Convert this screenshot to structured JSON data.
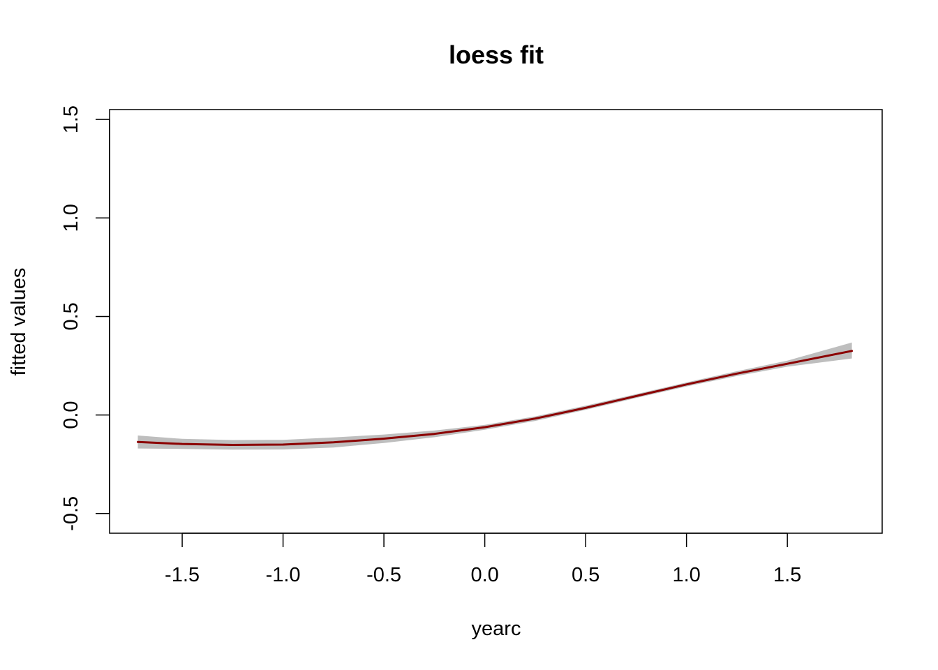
{
  "colors": {
    "line": "#8B0000",
    "band": "#BEBEBE",
    "axis": "#000000"
  },
  "chart_data": {
    "type": "line",
    "title": "loess fit",
    "xlabel": "yearc",
    "ylabel": "fitted values",
    "xlim": [
      -1.86,
      1.97
    ],
    "ylim": [
      -0.6,
      1.55
    ],
    "x_ticks": [
      -1.5,
      -1.0,
      -0.5,
      0.0,
      0.5,
      1.0,
      1.5
    ],
    "x_tick_labels": [
      "-1.5",
      "-1.0",
      "-0.5",
      "0.0",
      "0.5",
      "1.0",
      "1.5"
    ],
    "y_ticks": [
      -0.5,
      0.0,
      0.5,
      1.0,
      1.5
    ],
    "y_tick_labels": [
      "-0.5",
      "0.0",
      "0.5",
      "1.0",
      "1.5"
    ],
    "grid": false,
    "series": [
      {
        "x": [
          -1.72,
          -1.5,
          -1.25,
          -1.0,
          -0.75,
          -0.5,
          -0.25,
          0.0,
          0.25,
          0.5,
          0.75,
          1.0,
          1.25,
          1.5,
          1.82
        ],
        "y": [
          -0.137,
          -0.147,
          -0.152,
          -0.15,
          -0.139,
          -0.12,
          -0.096,
          -0.062,
          -0.018,
          0.036,
          0.096,
          0.155,
          0.21,
          0.26,
          0.325
        ],
        "lower": [
          -0.17,
          -0.172,
          -0.176,
          -0.175,
          -0.165,
          -0.142,
          -0.113,
          -0.075,
          -0.03,
          0.026,
          0.086,
          0.145,
          0.198,
          0.245,
          0.287
        ],
        "upper": [
          -0.104,
          -0.121,
          -0.127,
          -0.126,
          -0.114,
          -0.099,
          -0.079,
          -0.05,
          -0.007,
          0.047,
          0.106,
          0.165,
          0.222,
          0.276,
          0.368
        ]
      }
    ]
  }
}
